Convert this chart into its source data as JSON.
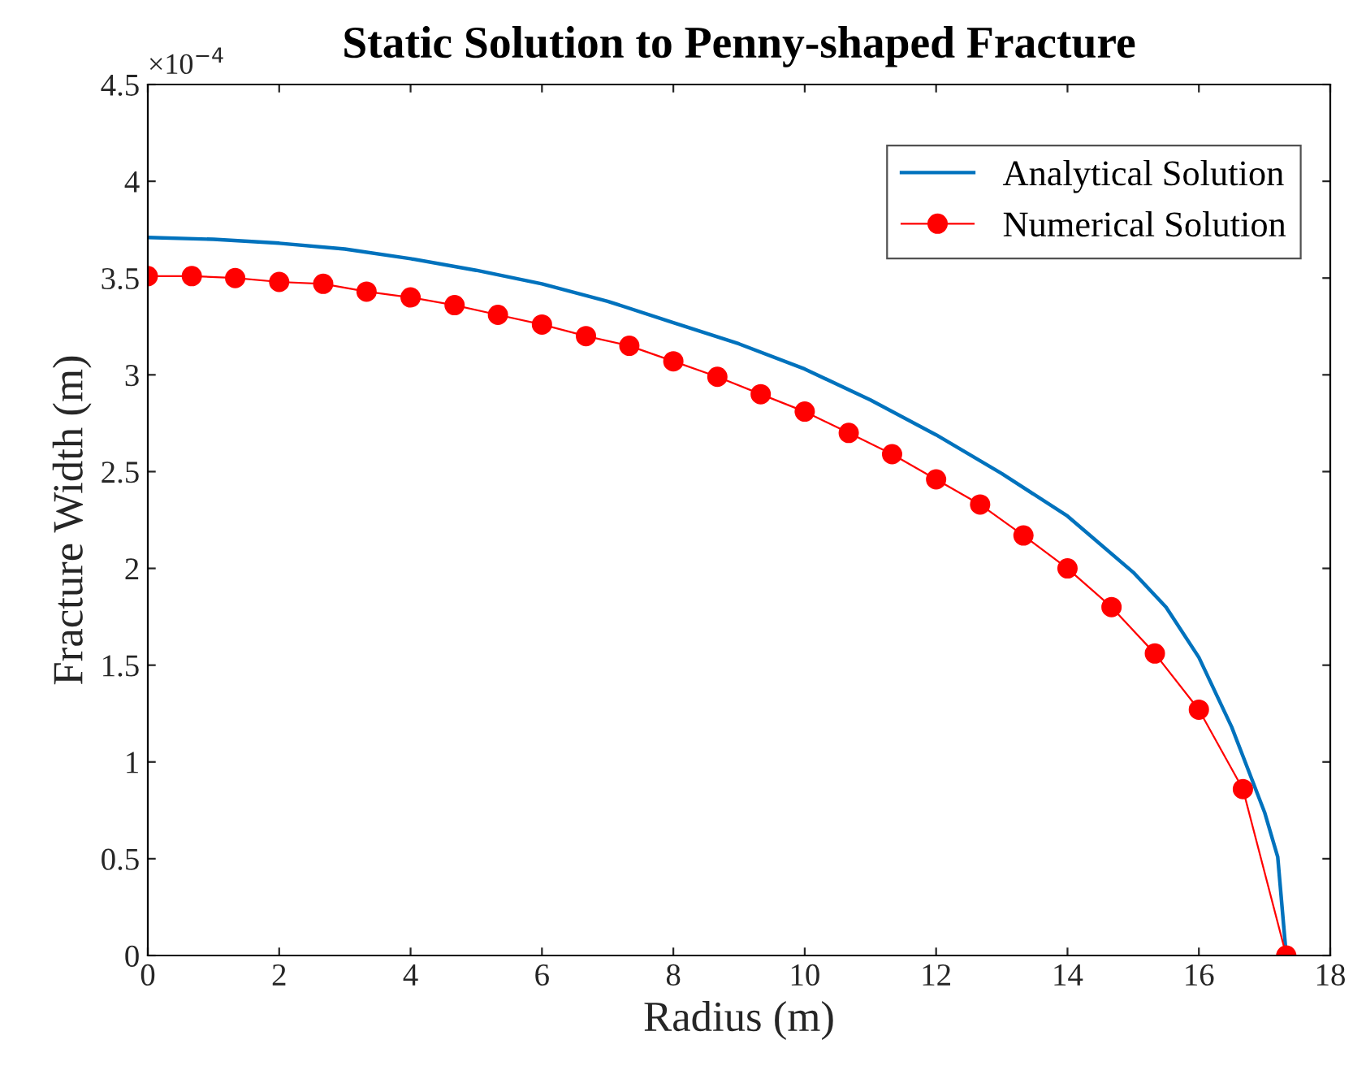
{
  "chart_data": {
    "type": "line",
    "title": "Static Solution to Penny-shaped Fracture",
    "xlabel": "Radius (m)",
    "ylabel": "Fracture Width (m)",
    "annotations": [
      "×10$^{−4}$"
    ],
    "series": [
      {
        "name": "Analytical Solution",
        "color": "#0072bd",
        "marker": "none",
        "x": [
          0,
          1,
          2,
          3,
          4,
          5,
          6,
          7,
          8,
          9,
          10,
          11,
          12,
          13,
          14,
          15,
          15.5,
          16,
          16.5,
          17,
          17.2,
          17.33
        ],
        "values": [
          3.71,
          3.7,
          3.68,
          3.65,
          3.6,
          3.54,
          3.47,
          3.38,
          3.27,
          3.16,
          3.03,
          2.87,
          2.69,
          2.49,
          2.27,
          1.98,
          1.8,
          1.54,
          1.18,
          0.74,
          0.51,
          0
        ]
      },
      {
        "name": "Numerical Solution",
        "color": "#ff0000",
        "marker": "circle",
        "x": [
          0,
          0.67,
          1.33,
          2,
          2.67,
          3.33,
          4,
          4.67,
          5.33,
          6,
          6.67,
          7.33,
          8,
          8.67,
          9.33,
          10,
          10.67,
          11.33,
          12,
          12.67,
          13.33,
          14,
          14.67,
          15.33,
          16,
          16.67,
          17.33
        ],
        "values": [
          3.51,
          3.51,
          3.5,
          3.48,
          3.47,
          3.43,
          3.4,
          3.36,
          3.31,
          3.26,
          3.2,
          3.15,
          3.07,
          2.99,
          2.9,
          2.81,
          2.7,
          2.59,
          2.46,
          2.33,
          2.17,
          2.0,
          1.8,
          1.56,
          1.27,
          0.86,
          0
        ]
      }
    ],
    "xlim": [
      0,
      18
    ],
    "xticks": [
      0,
      2,
      4,
      6,
      8,
      10,
      12,
      14,
      16,
      18
    ],
    "ylim": [
      0,
      4.5
    ],
    "yticks": [
      0,
      0.5,
      1,
      1.5,
      2,
      2.5,
      3,
      3.5,
      4,
      4.5
    ],
    "grid": false,
    "legend": "top right",
    "line_style": "solid"
  }
}
